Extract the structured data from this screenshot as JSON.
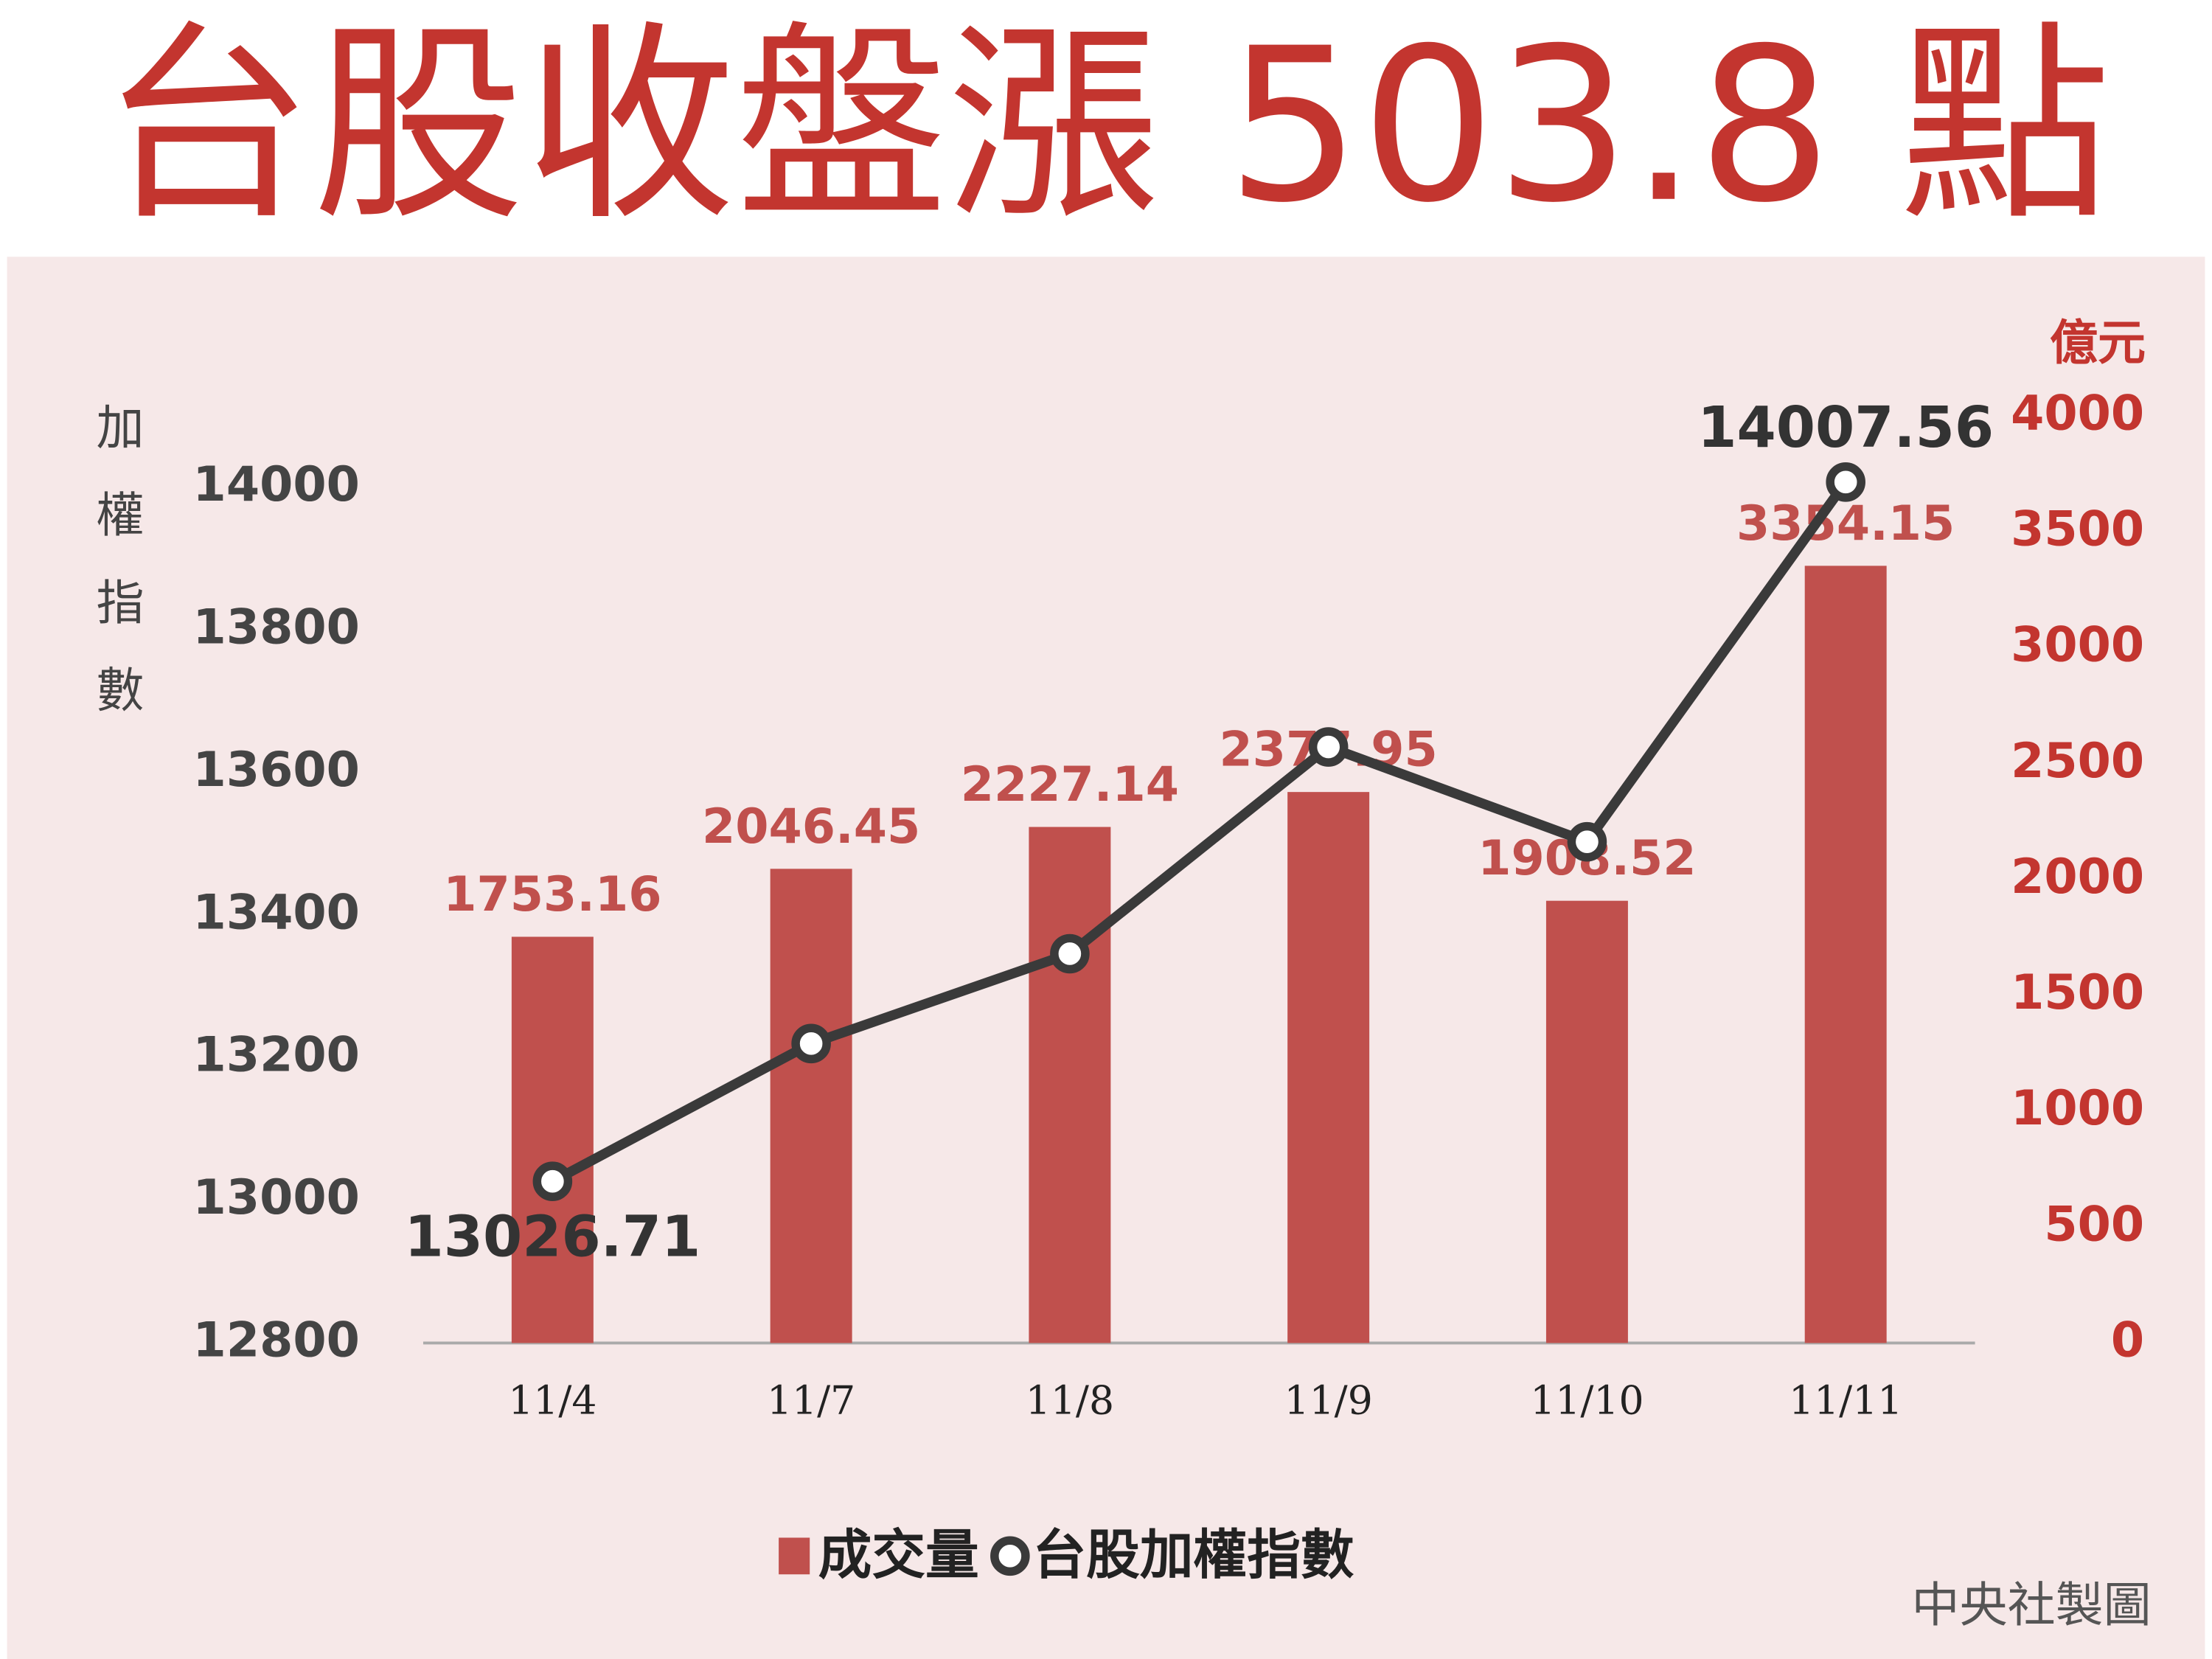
{
  "chart_data": {
    "type": "bar_line",
    "title": "台股收盤漲 503.8 點",
    "y_label": "加權指數",
    "y2_label": "億元",
    "credit": "中央社製圖",
    "categories": [
      "11/4",
      "11/7",
      "11/8",
      "11/9",
      "11/10",
      "11/11"
    ],
    "series": [
      {
        "name": "成交量",
        "type": "bar",
        "axis": "y2",
        "color": "#c0504d",
        "values": [
          1753.16,
          2046.45,
          2227.14,
          2377.95,
          1908.52,
          3354.15
        ]
      },
      {
        "name": "台股加權指數",
        "type": "line",
        "axis": "y",
        "color": "#3a3a3a",
        "values": [
          13026.71,
          13220,
          13346,
          13636,
          13503,
          14007.56
        ],
        "value_labels": [
          "13026.71",
          null,
          null,
          null,
          null,
          "14007.56"
        ]
      }
    ],
    "ylim": [
      12800,
      14100
    ],
    "yticks": [
      12800,
      13000,
      13200,
      13400,
      13600,
      13800,
      14000
    ],
    "y2lim": [
      0,
      4000
    ],
    "y2ticks": [
      0,
      500,
      1000,
      1500,
      2000,
      2500,
      3000,
      3500,
      4000
    ]
  }
}
